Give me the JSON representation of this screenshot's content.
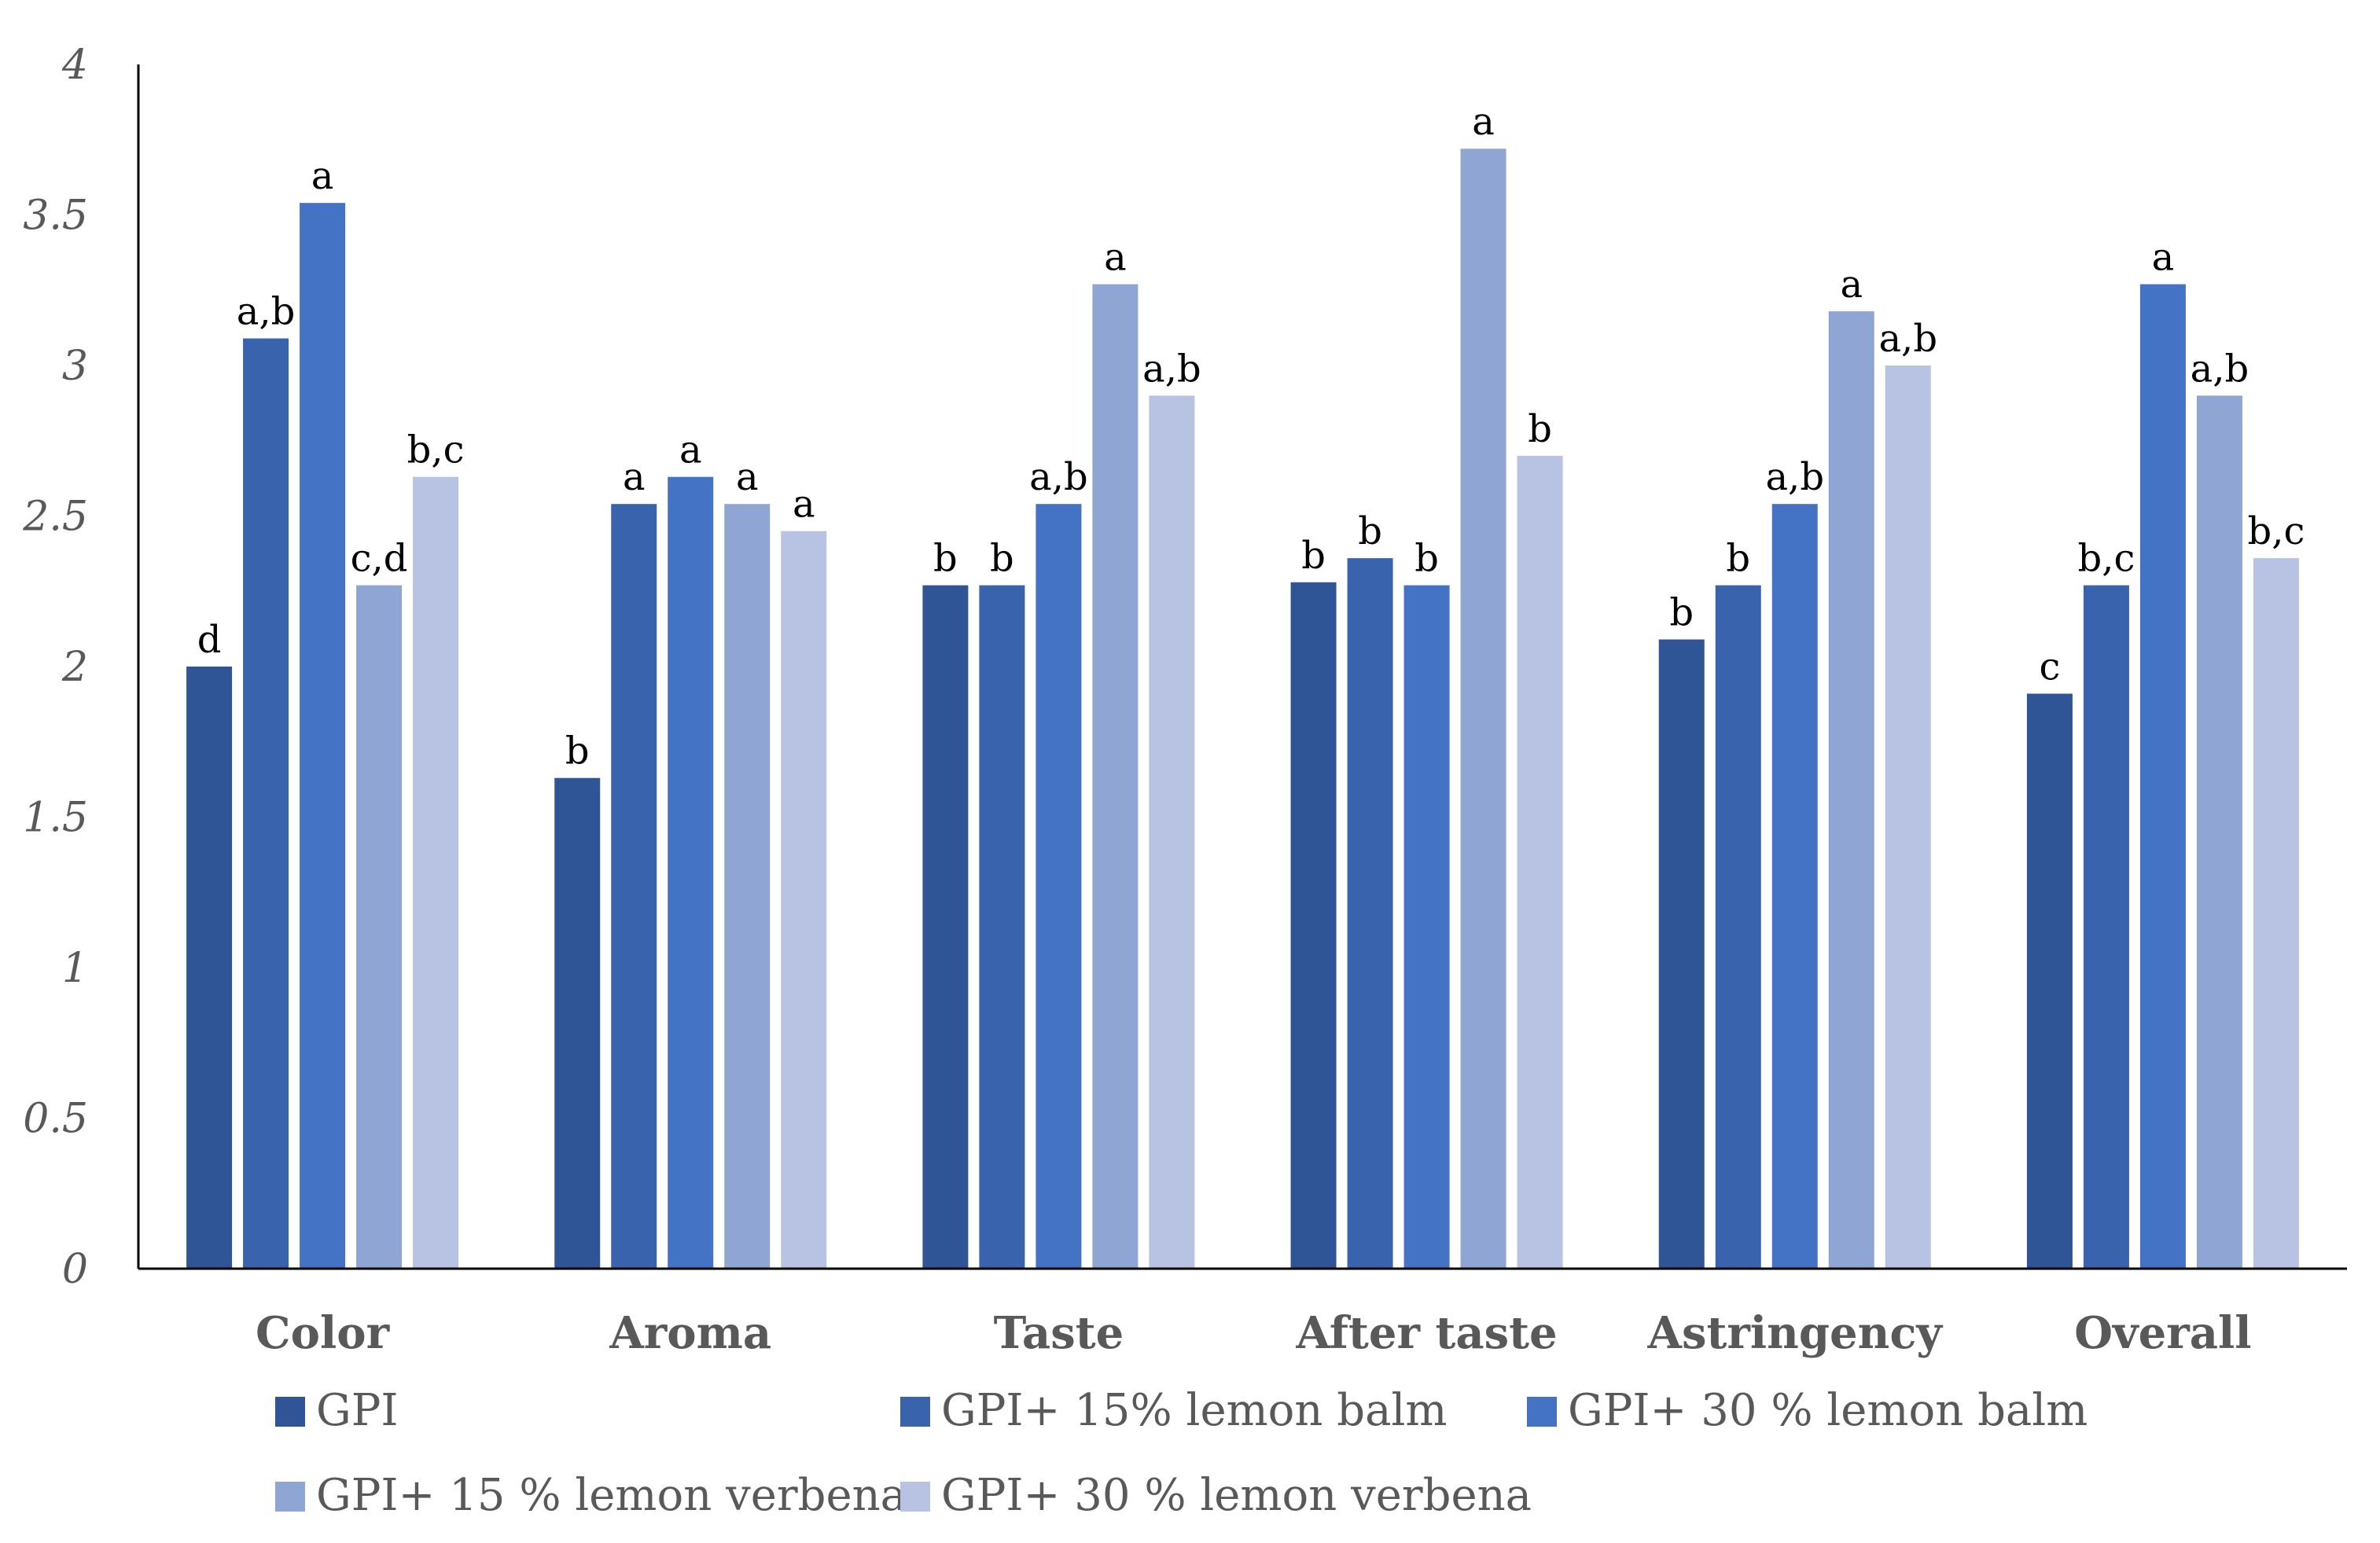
{
  "chart_data": {
    "type": "bar",
    "title": "",
    "xlabel": "",
    "ylabel": "",
    "ylim": [
      0,
      4
    ],
    "yticks": [
      "0",
      "0.5",
      "1",
      "1.5",
      "2",
      "2.5",
      "3",
      "3.5",
      "4"
    ],
    "grid": false,
    "legend_position": "bottom",
    "categories": [
      "Color",
      "Aroma",
      "Taste",
      "After taste",
      "Astringency",
      "Overall"
    ],
    "series": [
      {
        "name": "GPI",
        "color": "#2F5597",
        "values": [
          2.0,
          1.63,
          2.27,
          2.28,
          2.09,
          1.91
        ],
        "labels": [
          "d",
          "b",
          "b",
          "b",
          "b",
          "c"
        ]
      },
      {
        "name": "GPI+ 15% lemon balm",
        "color": "#3A63AD",
        "values": [
          3.09,
          2.54,
          2.27,
          2.36,
          2.27,
          2.27
        ],
        "labels": [
          "a,b",
          "a",
          "b",
          "b",
          "b",
          "b,c"
        ]
      },
      {
        "name": "GPI+ 30 % lemon balm",
        "color": "#4472C4",
        "values": [
          3.54,
          2.63,
          2.54,
          2.27,
          2.54,
          3.27
        ],
        "labels": [
          "a",
          "a",
          "a,b",
          "b",
          "a,b",
          "a"
        ]
      },
      {
        "name": "GPI+ 15 % lemon verbena",
        "color": "#8FA5D4",
        "values": [
          2.27,
          2.54,
          3.27,
          3.72,
          3.18,
          2.9
        ],
        "labels": [
          "c,d",
          "a",
          "a",
          "a",
          "a",
          "a,b"
        ]
      },
      {
        "name": "GPI+ 30 % lemon verbena",
        "color": "#B8C3E3",
        "values": [
          2.63,
          2.45,
          2.9,
          2.7,
          3.0,
          2.36
        ],
        "labels": [
          "b,c",
          "a",
          "a,b",
          "b",
          "a,b",
          "b,c"
        ]
      }
    ]
  }
}
